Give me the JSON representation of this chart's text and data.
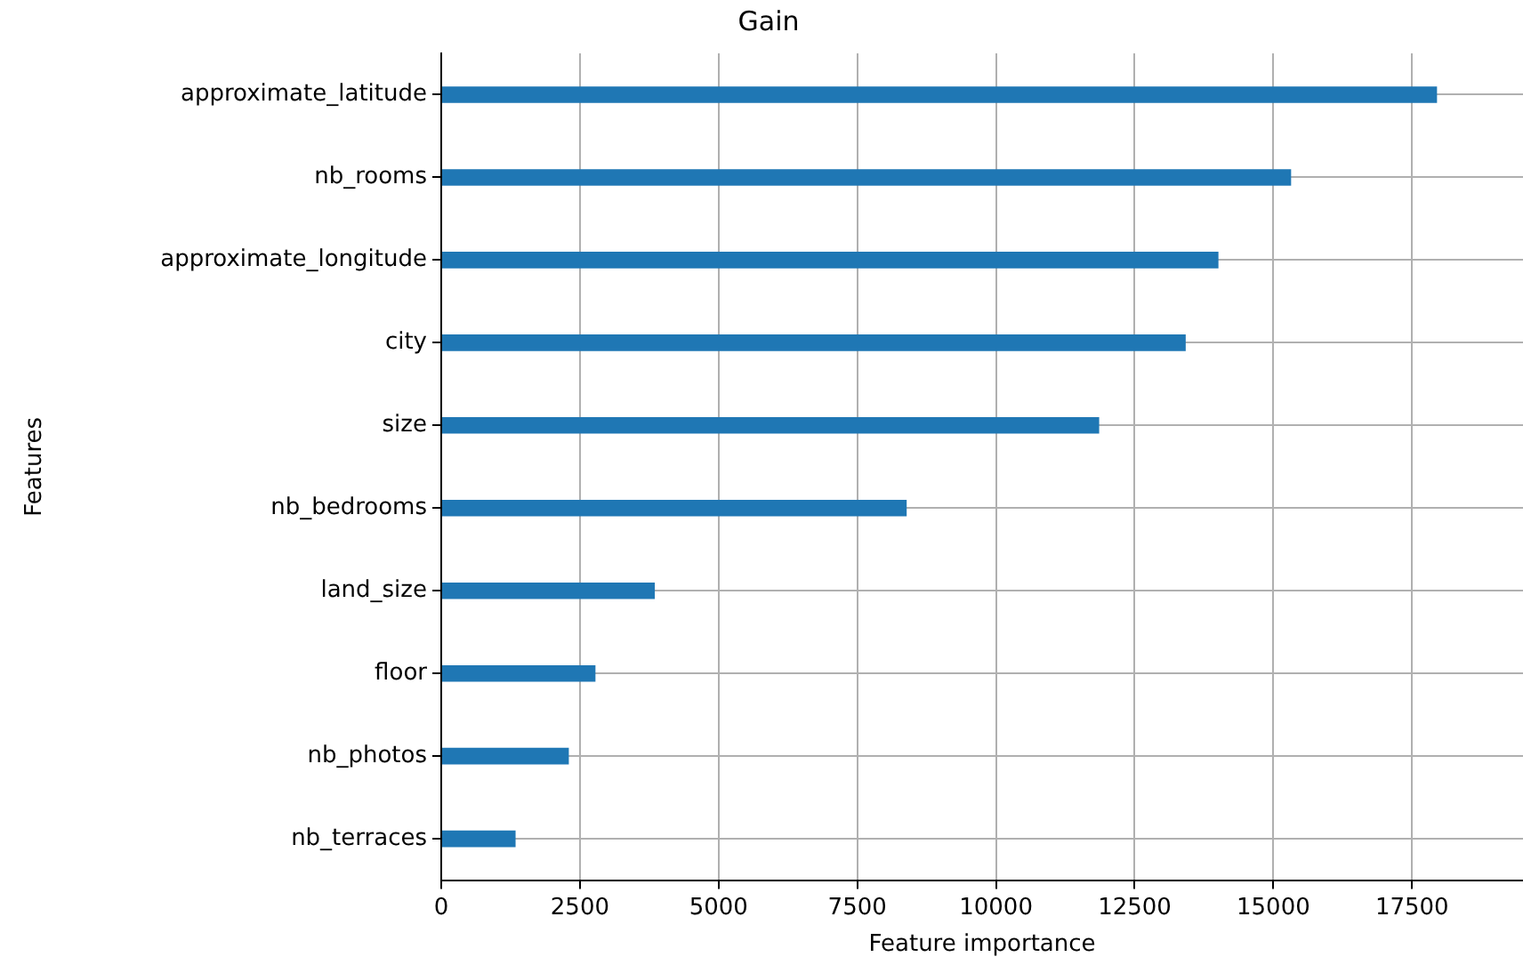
{
  "chart_data": {
    "type": "bar",
    "orientation": "horizontal",
    "title": "Gain",
    "xlabel": "Feature importance",
    "ylabel": "Features",
    "categories": [
      "approximate_latitude",
      "nb_rooms",
      "approximate_longitude",
      "city",
      "size",
      "nb_bedrooms",
      "land_size",
      "floor",
      "nb_photos",
      "nb_terraces"
    ],
    "series": [
      {
        "color": "#1f77b4",
        "values": [
          17950,
          15320,
          14010,
          13420,
          11860,
          8390,
          3850,
          2780,
          2300,
          1340
        ]
      }
    ],
    "xlim": [
      0,
      19500
    ],
    "xticks": [
      0,
      2500,
      5000,
      7500,
      10000,
      12500,
      15000,
      17500
    ],
    "grid": true,
    "legend": false
  }
}
